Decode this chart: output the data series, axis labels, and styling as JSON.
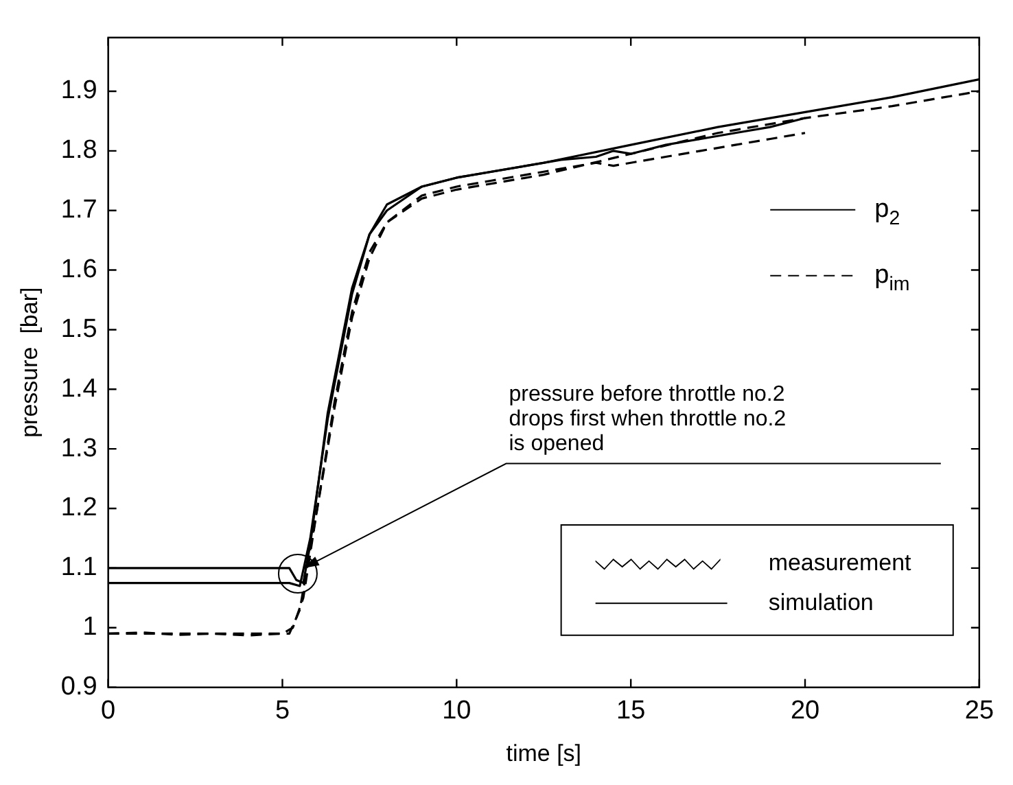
{
  "chart_data": {
    "type": "line",
    "xlabel": "time [s]",
    "ylabel": "pressure  [bar]",
    "xlim": [
      0,
      25
    ],
    "xticks": [
      0,
      5,
      10,
      15,
      20,
      25
    ],
    "ylim": [
      0.9,
      1.99
    ],
    "yticks": [
      0.9,
      1,
      1.1,
      1.2,
      1.3,
      1.4,
      1.5,
      1.6,
      1.7,
      1.8,
      1.9
    ],
    "grid": false,
    "series": [
      {
        "color": "#000000",
        "line_style": "solid",
        "x": [
          0,
          5.2,
          5.5,
          5.8,
          6.3,
          7,
          7.5,
          8,
          9,
          10,
          12.5,
          15,
          17.5,
          20,
          22.5,
          25
        ],
        "values": [
          1.075,
          1.075,
          1.07,
          1.15,
          1.35,
          1.56,
          1.66,
          1.71,
          1.74,
          1.755,
          1.78,
          1.81,
          1.84,
          1.865,
          1.89,
          1.92
        ]
      },
      {
        "color": "#000000",
        "line_style": "solid",
        "x": [
          0,
          4.9,
          5.2,
          5.4,
          5.6,
          5.8,
          6.3,
          7,
          7.5,
          8,
          9,
          10,
          11,
          12,
          13,
          14,
          14.5,
          15,
          16,
          17,
          18,
          19,
          20
        ],
        "values": [
          1.1,
          1.1,
          1.1,
          1.08,
          1.075,
          1.14,
          1.36,
          1.57,
          1.66,
          1.7,
          1.74,
          1.755,
          1.765,
          1.775,
          1.785,
          1.79,
          1.8,
          1.795,
          1.81,
          1.82,
          1.83,
          1.84,
          1.855
        ]
      },
      {
        "color": "#000000",
        "line_style": "dashed",
        "x": [
          0,
          5.2,
          5.5,
          6,
          6.5,
          7,
          7.5,
          8,
          9,
          10,
          12.5,
          15,
          17.5,
          20,
          22.5,
          25
        ],
        "values": [
          0.99,
          0.99,
          1.03,
          1.2,
          1.37,
          1.52,
          1.62,
          1.68,
          1.72,
          1.735,
          1.76,
          1.795,
          1.83,
          1.855,
          1.875,
          1.9
        ]
      },
      {
        "color": "#000000",
        "line_style": "dashed",
        "x": [
          0,
          1,
          2,
          3,
          4,
          5,
          5.3,
          5.6,
          6,
          6.5,
          7,
          7.5,
          8,
          9,
          10,
          11,
          12,
          13,
          14,
          14.5,
          15,
          16,
          17,
          18,
          19,
          20
        ],
        "values": [
          0.99,
          0.992,
          0.988,
          0.99,
          0.987,
          0.99,
          1,
          1.05,
          1.2,
          1.38,
          1.53,
          1.63,
          1.68,
          1.725,
          1.74,
          1.75,
          1.76,
          1.77,
          1.78,
          1.775,
          1.78,
          1.79,
          1.8,
          1.81,
          1.82,
          1.83
        ]
      }
    ],
    "annotations": [
      {
        "text": "pressure before throttle no.2\ndrops first when throttle no.2\nis opened",
        "x": 5.6,
        "y": 1.1
      },
      "p$_{2}$",
      "p$_{im}$",
      "measurement",
      "simulation"
    ]
  }
}
